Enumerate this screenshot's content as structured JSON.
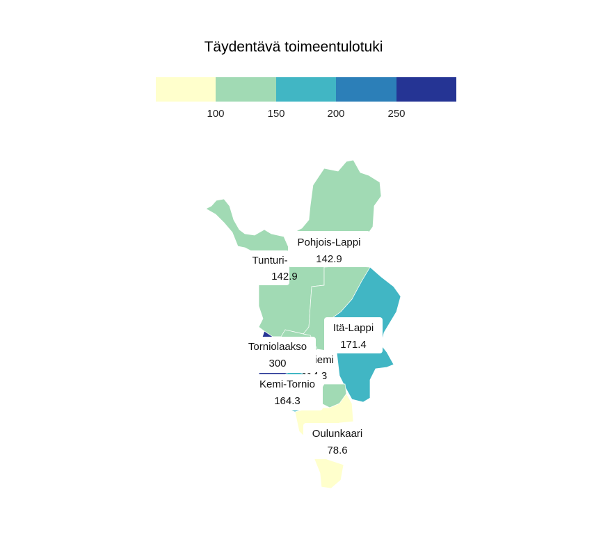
{
  "title": "Täydentävä toimeentulotuki",
  "legend": {
    "colors": [
      "#ffffcc",
      "#a1dab4",
      "#41b6c4",
      "#2c7fb8",
      "#253494"
    ],
    "ticks": [
      "100",
      "150",
      "200",
      "250"
    ]
  },
  "regions": [
    {
      "key": "pohjois_lappi",
      "name": "Pohjois-Lappi",
      "value": "142.9",
      "color": "#a1dab4"
    },
    {
      "key": "tunturi_lappi",
      "name": "Tunturi-",
      "value": "142.9",
      "color": "#a1dab4"
    },
    {
      "key": "ita_lappi",
      "name": "Itä-Lappi",
      "value": "171.4",
      "color": "#41b6c4"
    },
    {
      "key": "torniolaakso",
      "name": "Torniolaakso",
      "value": "300",
      "color": "#253494"
    },
    {
      "key": "rovaniemi",
      "name": "niemi",
      "value": "114.3",
      "color": "#a1dab4"
    },
    {
      "key": "kemi_tornio",
      "name": "Kemi-Tornio",
      "value": "164.3",
      "color": "#41b6c4"
    },
    {
      "key": "oulunkaari",
      "name": "Oulunkaari",
      "value": "78.6",
      "color": "#ffffcc"
    }
  ]
}
